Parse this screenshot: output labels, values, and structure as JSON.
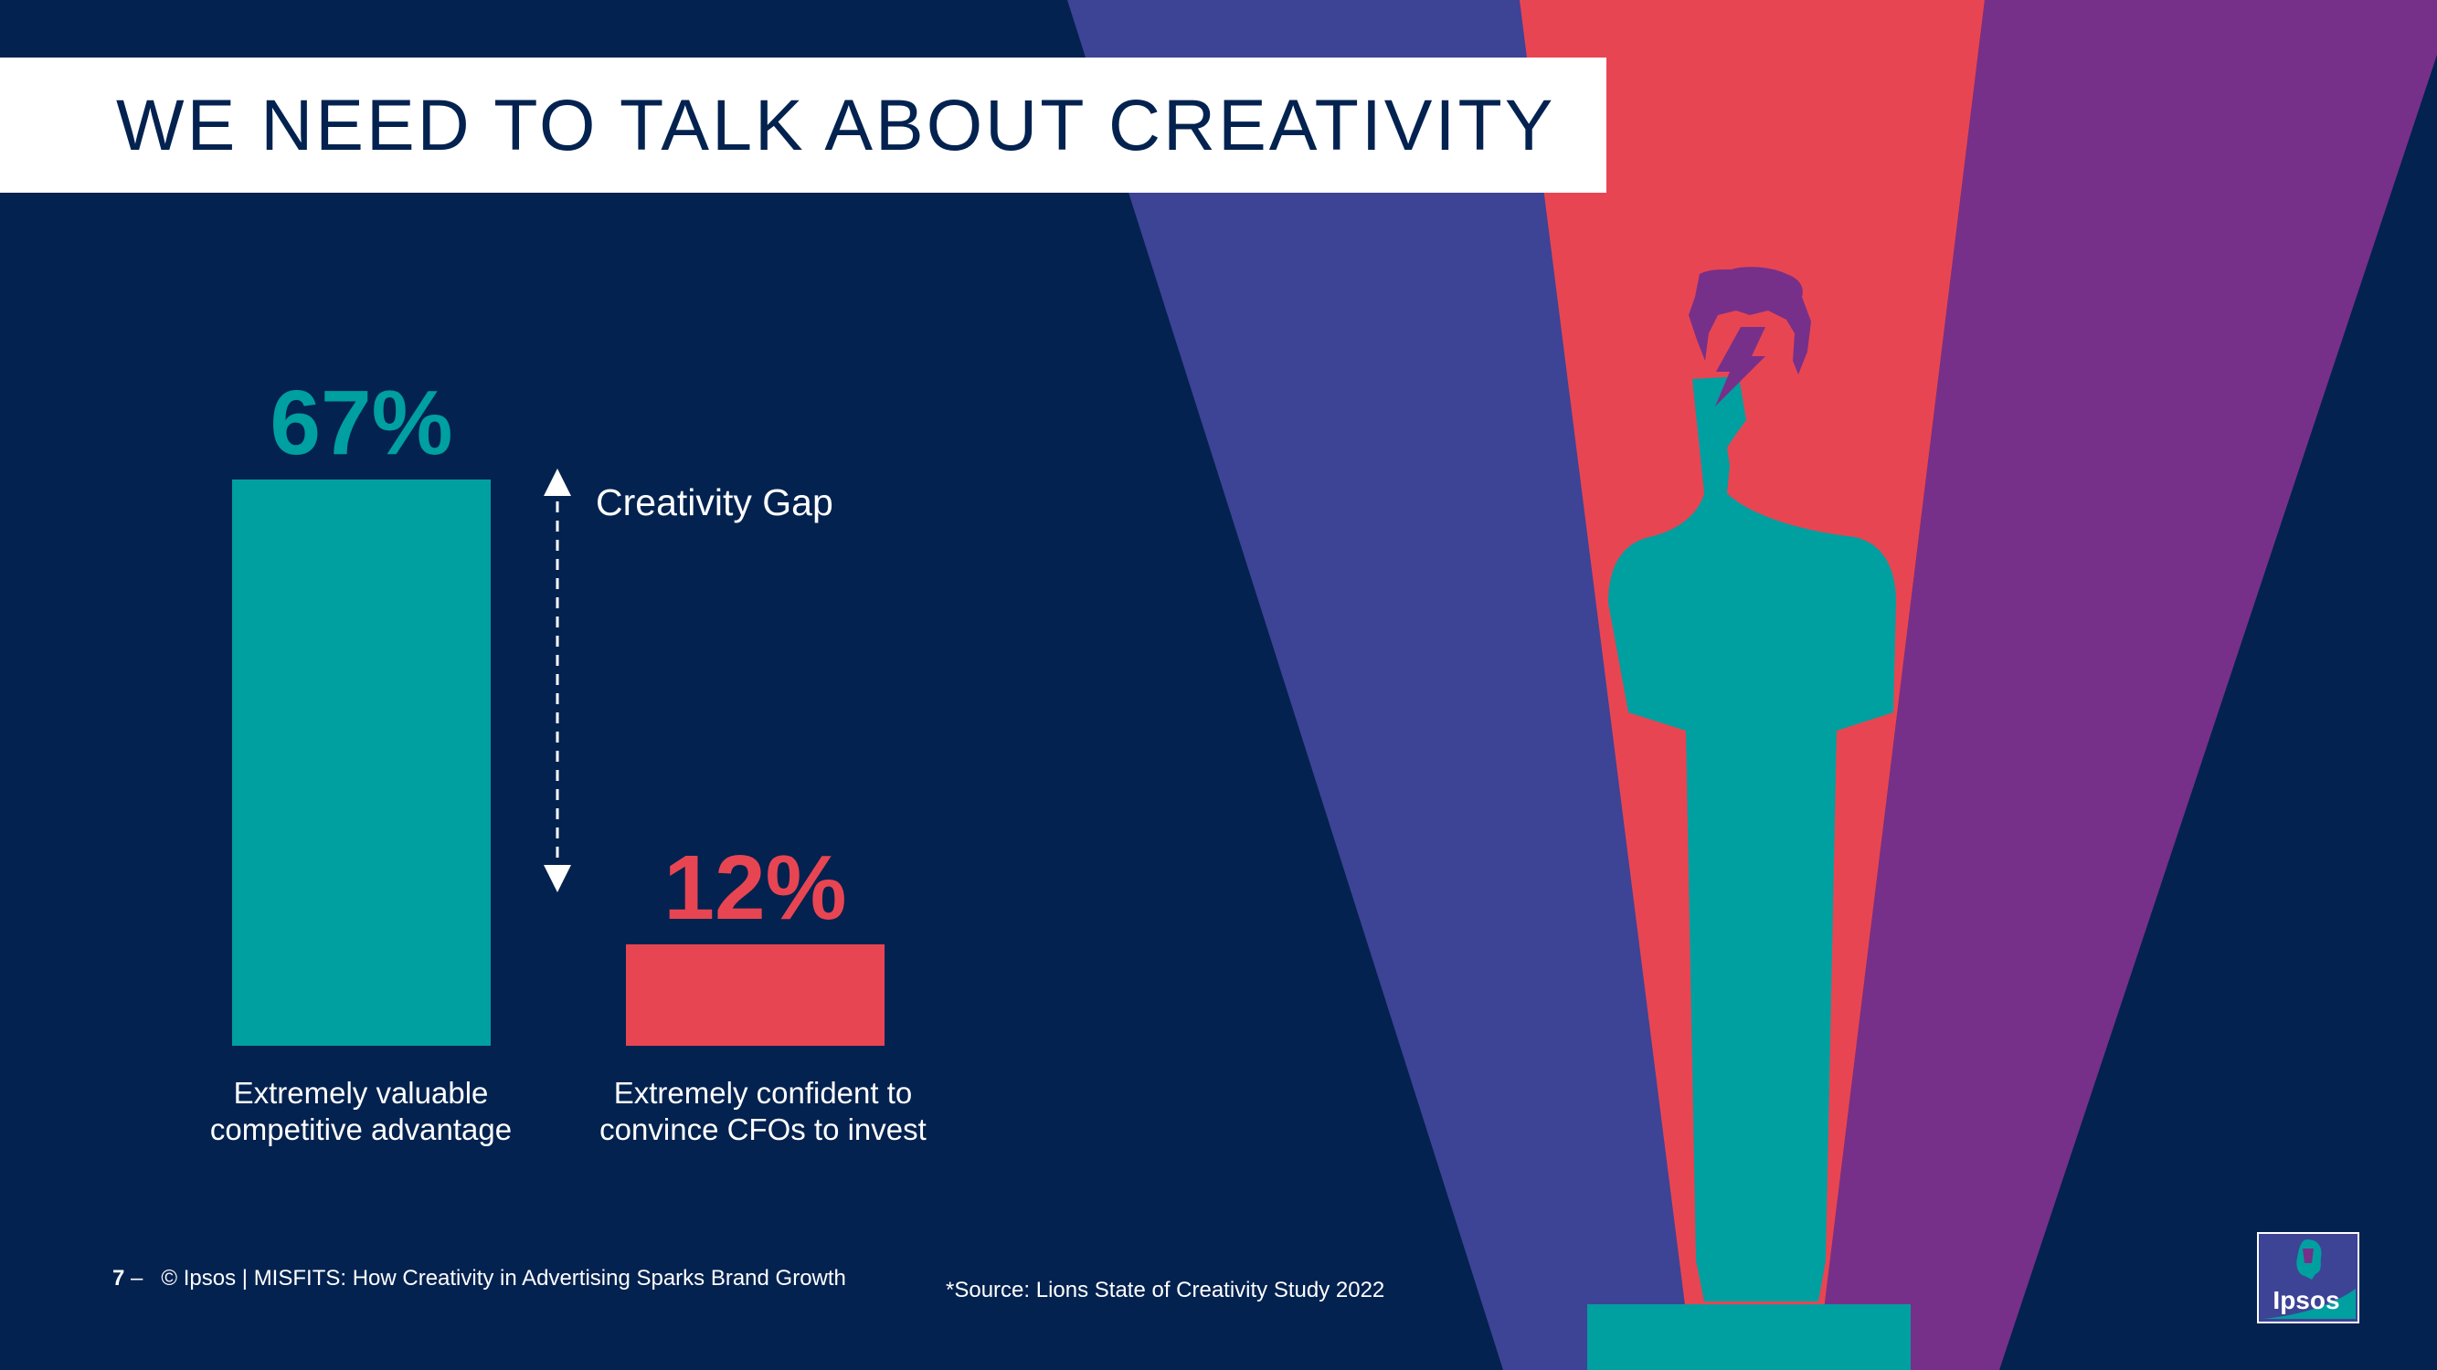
{
  "header": {
    "title": "WE NEED TO TALK ABOUT CREATIVITY"
  },
  "chart_data": {
    "type": "bar",
    "title": "",
    "categories": [
      "Extremely valuable competitive advantage",
      "Extremely confident to convince CFOs to invest"
    ],
    "values": [
      67,
      12
    ],
    "value_labels": [
      "67%",
      "12%"
    ],
    "colors": [
      "#009fa0",
      "#e84553"
    ],
    "ylim": [
      0,
      67
    ],
    "annotation": "Creativity Gap",
    "xlabel": "",
    "ylabel": ""
  },
  "labels": {
    "bar1_line1": "Extremely valuable",
    "bar1_line2": "competitive advantage",
    "bar2_line1": "Extremely confident to",
    "bar2_line2": "convince CFOs to invest"
  },
  "footer": {
    "page_number": "7",
    "separator": "–",
    "copyright": "© Ipsos | MISFITS: How Creativity in Advertising Sparks Brand Growth",
    "source": "*Source: Lions State of Creativity Study 2022"
  },
  "logo": {
    "text": "Ipsos"
  },
  "colors": {
    "background": "#03224f",
    "beam_blue": "#3d4395",
    "beam_red": "#e84553",
    "beam_purple": "#763089",
    "statue": "#009fa0"
  }
}
